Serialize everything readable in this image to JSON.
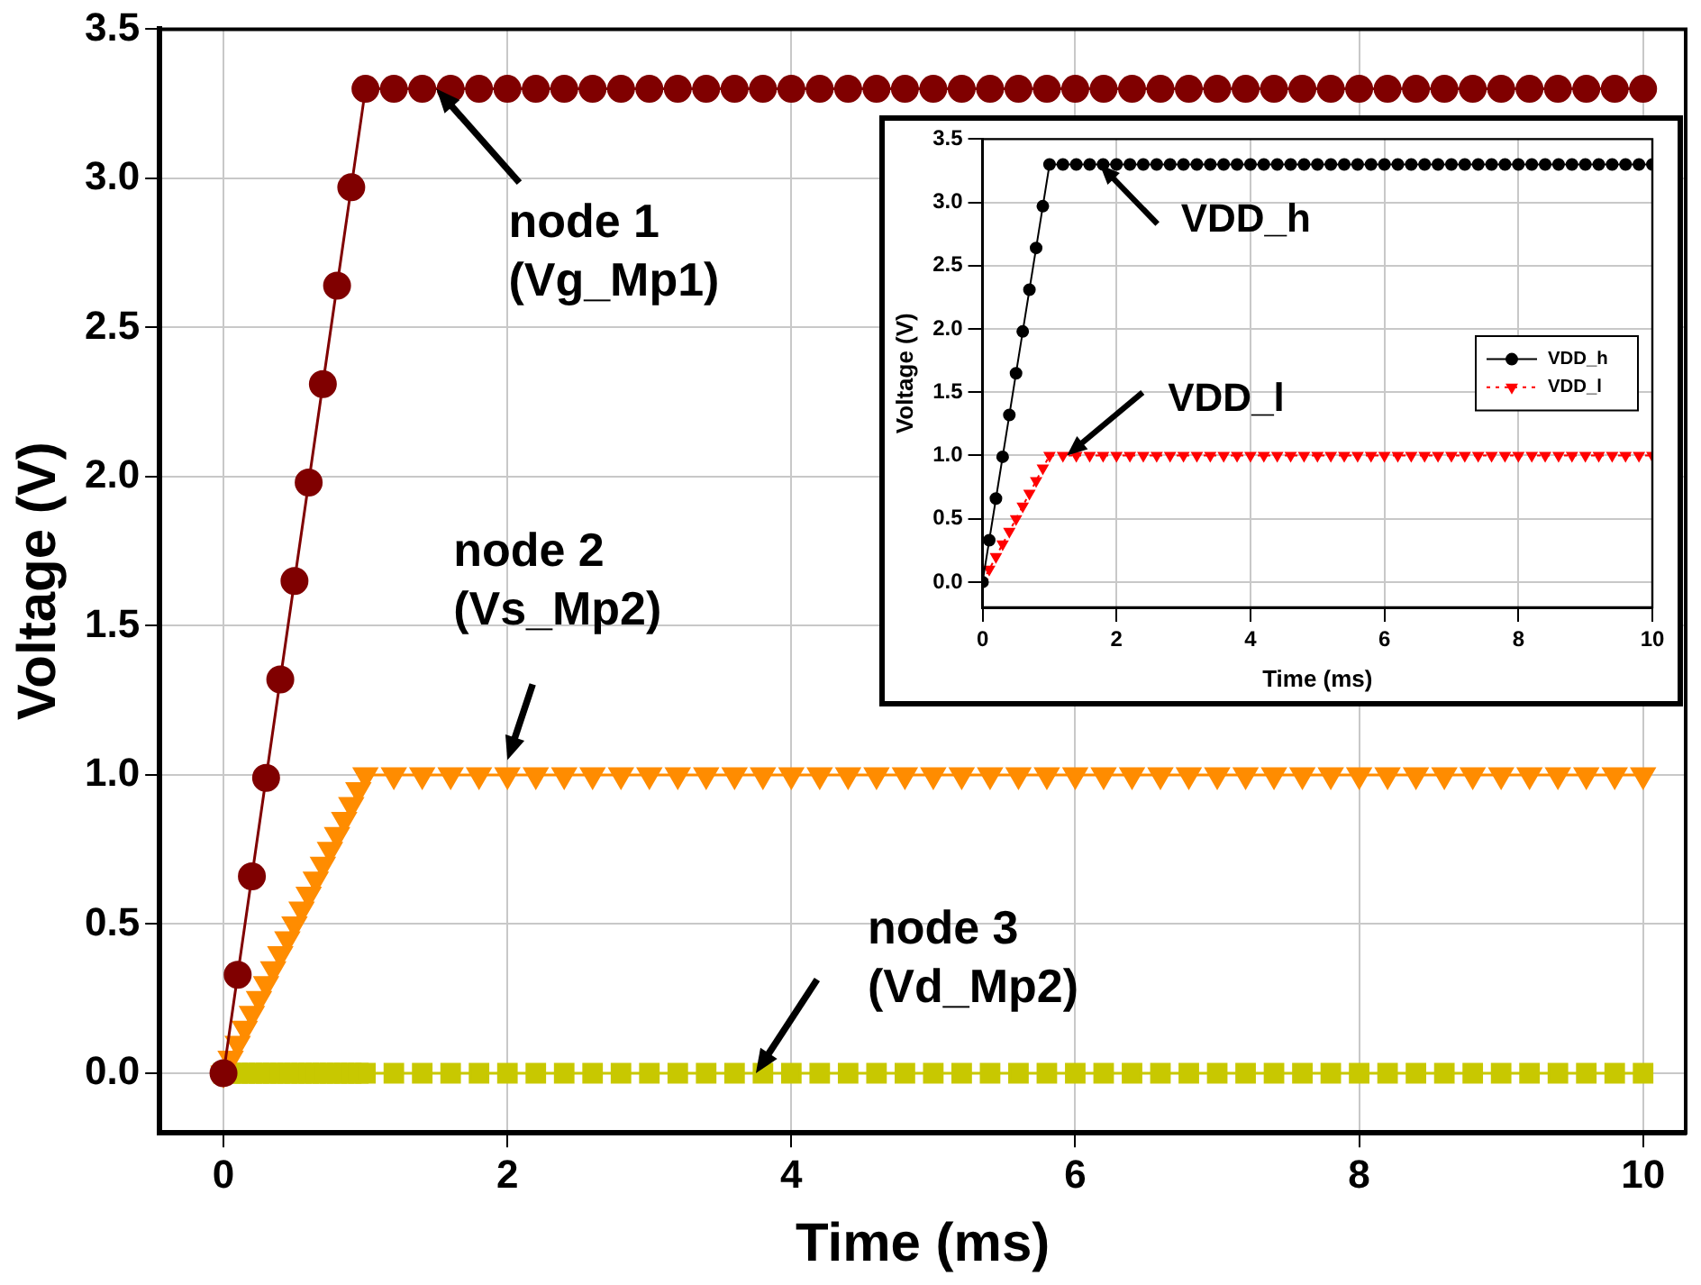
{
  "chart_data": [
    {
      "type": "line",
      "xlabel": "Time (ms)",
      "ylabel": "Voltage (V)",
      "xlim": [
        -0.45,
        10.3
      ],
      "ylim": [
        -0.2,
        3.5
      ],
      "xticks": [
        0,
        2,
        4,
        6,
        8,
        10
      ],
      "yticks": [
        {
          "value": 0,
          "label": "0.0"
        },
        0.5,
        {
          "value": 1,
          "label": "1.0"
        },
        1.5,
        {
          "value": 2,
          "label": "2.0"
        },
        2.5,
        {
          "value": 3,
          "label": "3.0"
        },
        3.5
      ],
      "grid": true,
      "legend": false,
      "series": [
        {
          "color": "#800000",
          "marker": "circle",
          "line_style": "solid",
          "x": [
            0,
            0.1,
            0.2,
            0.3,
            0.4,
            0.5,
            0.6,
            0.7,
            0.8,
            0.9,
            1,
            1.2,
            1.4,
            1.6,
            1.8,
            2,
            2.2,
            2.4,
            2.6,
            2.8,
            3,
            3.2,
            3.4,
            3.6,
            3.8,
            4,
            4.2,
            4.4,
            4.6,
            4.8,
            5,
            5.2,
            5.4,
            5.6,
            5.8,
            6,
            6.2,
            6.4,
            6.6,
            6.8,
            7,
            7.2,
            7.4,
            7.6,
            7.8,
            8,
            8.2,
            8.4,
            8.6,
            8.8,
            9,
            9.2,
            9.4,
            9.6,
            9.8,
            10
          ],
          "values": [
            0,
            0.33,
            0.66,
            0.99,
            1.32,
            1.65,
            1.98,
            2.31,
            2.64,
            2.97,
            3.3,
            3.3,
            3.3,
            3.3,
            3.3,
            3.3,
            3.3,
            3.3,
            3.3,
            3.3,
            3.3,
            3.3,
            3.3,
            3.3,
            3.3,
            3.3,
            3.3,
            3.3,
            3.3,
            3.3,
            3.3,
            3.3,
            3.3,
            3.3,
            3.3,
            3.3,
            3.3,
            3.3,
            3.3,
            3.3,
            3.3,
            3.3,
            3.3,
            3.3,
            3.3,
            3.3,
            3.3,
            3.3,
            3.3,
            3.3,
            3.3,
            3.3,
            3.3,
            3.3,
            3.3,
            3.3
          ]
        },
        {
          "color": "#ff8c00",
          "marker": "triangle",
          "line_style": "solid",
          "x": [
            0,
            0.05,
            0.1,
            0.15,
            0.2,
            0.25,
            0.3,
            0.35,
            0.4,
            0.45,
            0.5,
            0.55,
            0.6,
            0.65,
            0.7,
            0.75,
            0.8,
            0.85,
            0.9,
            0.95,
            1,
            1.2,
            1.4,
            1.6,
            1.8,
            2,
            2.2,
            2.4,
            2.6,
            2.8,
            3,
            3.2,
            3.4,
            3.6,
            3.8,
            4,
            4.2,
            4.4,
            4.6,
            4.8,
            5,
            5.2,
            5.4,
            5.6,
            5.8,
            6,
            6.2,
            6.4,
            6.6,
            6.8,
            7,
            7.2,
            7.4,
            7.6,
            7.8,
            8,
            8.2,
            8.4,
            8.6,
            8.8,
            9,
            9.2,
            9.4,
            9.6,
            9.8,
            10
          ],
          "values": [
            0,
            0.05,
            0.1,
            0.15,
            0.2,
            0.25,
            0.3,
            0.35,
            0.4,
            0.45,
            0.5,
            0.55,
            0.6,
            0.65,
            0.7,
            0.75,
            0.8,
            0.85,
            0.9,
            0.95,
            1,
            1,
            1,
            1,
            1,
            1,
            1,
            1,
            1,
            1,
            1,
            1,
            1,
            1,
            1,
            1,
            1,
            1,
            1,
            1,
            1,
            1,
            1,
            1,
            1,
            1,
            1,
            1,
            1,
            1,
            1,
            1,
            1,
            1,
            1,
            1,
            1,
            1,
            1,
            1,
            1,
            1,
            1,
            1,
            1,
            1
          ]
        },
        {
          "color": "#c8c800",
          "marker": "square",
          "line_style": "solid",
          "x": [
            0,
            0.05,
            0.1,
            0.15,
            0.2,
            0.25,
            0.3,
            0.35,
            0.4,
            0.45,
            0.5,
            0.55,
            0.6,
            0.65,
            0.7,
            0.75,
            0.8,
            0.85,
            0.9,
            0.95,
            1,
            1.2,
            1.4,
            1.6,
            1.8,
            2,
            2.2,
            2.4,
            2.6,
            2.8,
            3,
            3.2,
            3.4,
            3.6,
            3.8,
            4,
            4.2,
            4.4,
            4.6,
            4.8,
            5,
            5.2,
            5.4,
            5.6,
            5.8,
            6,
            6.2,
            6.4,
            6.6,
            6.8,
            7,
            7.2,
            7.4,
            7.6,
            7.8,
            8,
            8.2,
            8.4,
            8.6,
            8.8,
            9,
            9.2,
            9.4,
            9.6,
            9.8,
            10
          ],
          "values": [
            0,
            0,
            0,
            0,
            0,
            0,
            0,
            0,
            0,
            0,
            0,
            0,
            0,
            0,
            0,
            0,
            0,
            0,
            0,
            0,
            0,
            0,
            0,
            0,
            0,
            0,
            0,
            0,
            0,
            0,
            0,
            0,
            0,
            0,
            0,
            0,
            0,
            0,
            0,
            0,
            0,
            0,
            0,
            0,
            0,
            0,
            0,
            0,
            0,
            0,
            0,
            0,
            0,
            0,
            0,
            0,
            0,
            0,
            0,
            0,
            0,
            0,
            0,
            0,
            0,
            0
          ]
        }
      ],
      "annotations": [
        {
          "text": "node 1\n(Vg_Mp1)",
          "x": 1.5,
          "y": 3.3
        },
        {
          "text": "node 2\n(Vs_Mp2)",
          "x": 2,
          "y": 1.05
        },
        {
          "text": "node 3\n(Vd_Mp2)",
          "x": 3.75,
          "y": 0
        }
      ]
    },
    {
      "type": "line",
      "xlabel": "Time (ms)",
      "ylabel": "Voltage (V)",
      "xlim": [
        0,
        10
      ],
      "ylim": [
        -0.2,
        3.5
      ],
      "xticks": [
        0,
        2,
        4,
        6,
        8,
        10
      ],
      "yticks": [
        {
          "value": 0,
          "label": "0.0"
        },
        0.5,
        {
          "value": 1,
          "label": "1.0"
        },
        1.5,
        {
          "value": 2,
          "label": "2.0"
        },
        2.5,
        {
          "value": 3,
          "label": "3.0"
        },
        3.5
      ],
      "grid": true,
      "legend": "right",
      "series": [
        {
          "name": "VDD_h",
          "color": "#000000",
          "marker": "circle",
          "line_style": "solid",
          "x": [
            0,
            0.1,
            0.2,
            0.3,
            0.4,
            0.5,
            0.6,
            0.7,
            0.8,
            0.9,
            1,
            1.2,
            1.4,
            1.6,
            1.8,
            2,
            2.2,
            2.4,
            2.6,
            2.8,
            3,
            3.2,
            3.4,
            3.6,
            3.8,
            4,
            4.2,
            4.4,
            4.6,
            4.8,
            5,
            5.2,
            5.4,
            5.6,
            5.8,
            6,
            6.2,
            6.4,
            6.6,
            6.8,
            7,
            7.2,
            7.4,
            7.6,
            7.8,
            8,
            8.2,
            8.4,
            8.6,
            8.8,
            9,
            9.2,
            9.4,
            9.6,
            9.8,
            10
          ],
          "values": [
            0,
            0.33,
            0.66,
            0.99,
            1.32,
            1.65,
            1.98,
            2.31,
            2.64,
            2.97,
            3.3,
            3.3,
            3.3,
            3.3,
            3.3,
            3.3,
            3.3,
            3.3,
            3.3,
            3.3,
            3.3,
            3.3,
            3.3,
            3.3,
            3.3,
            3.3,
            3.3,
            3.3,
            3.3,
            3.3,
            3.3,
            3.3,
            3.3,
            3.3,
            3.3,
            3.3,
            3.3,
            3.3,
            3.3,
            3.3,
            3.3,
            3.3,
            3.3,
            3.3,
            3.3,
            3.3,
            3.3,
            3.3,
            3.3,
            3.3,
            3.3,
            3.3,
            3.3,
            3.3,
            3.3,
            3.3
          ]
        },
        {
          "name": "VDD_l",
          "color": "#ff0000",
          "marker": "triangle",
          "line_style": "dotted",
          "x": [
            0,
            0.1,
            0.2,
            0.3,
            0.4,
            0.5,
            0.6,
            0.7,
            0.8,
            0.9,
            1,
            1.2,
            1.4,
            1.6,
            1.8,
            2,
            2.2,
            2.4,
            2.6,
            2.8,
            3,
            3.2,
            3.4,
            3.6,
            3.8,
            4,
            4.2,
            4.4,
            4.6,
            4.8,
            5,
            5.2,
            5.4,
            5.6,
            5.8,
            6,
            6.2,
            6.4,
            6.6,
            6.8,
            7,
            7.2,
            7.4,
            7.6,
            7.8,
            8,
            8.2,
            8.4,
            8.6,
            8.8,
            9,
            9.2,
            9.4,
            9.6,
            9.8,
            10
          ],
          "values": [
            0,
            0.1,
            0.2,
            0.3,
            0.4,
            0.5,
            0.6,
            0.7,
            0.8,
            0.9,
            1,
            1,
            1,
            1,
            1,
            1,
            1,
            1,
            1,
            1,
            1,
            1,
            1,
            1,
            1,
            1,
            1,
            1,
            1,
            1,
            1,
            1,
            1,
            1,
            1,
            1,
            1,
            1,
            1,
            1,
            1,
            1,
            1,
            1,
            1,
            1,
            1,
            1,
            1,
            1,
            1,
            1,
            1,
            1,
            1,
            1
          ]
        }
      ],
      "annotations": [
        {
          "text": "VDD_h",
          "x": 1.75,
          "y": 3.3
        },
        {
          "text": "VDD_l",
          "x": 1.26,
          "y": 1
        }
      ]
    }
  ]
}
